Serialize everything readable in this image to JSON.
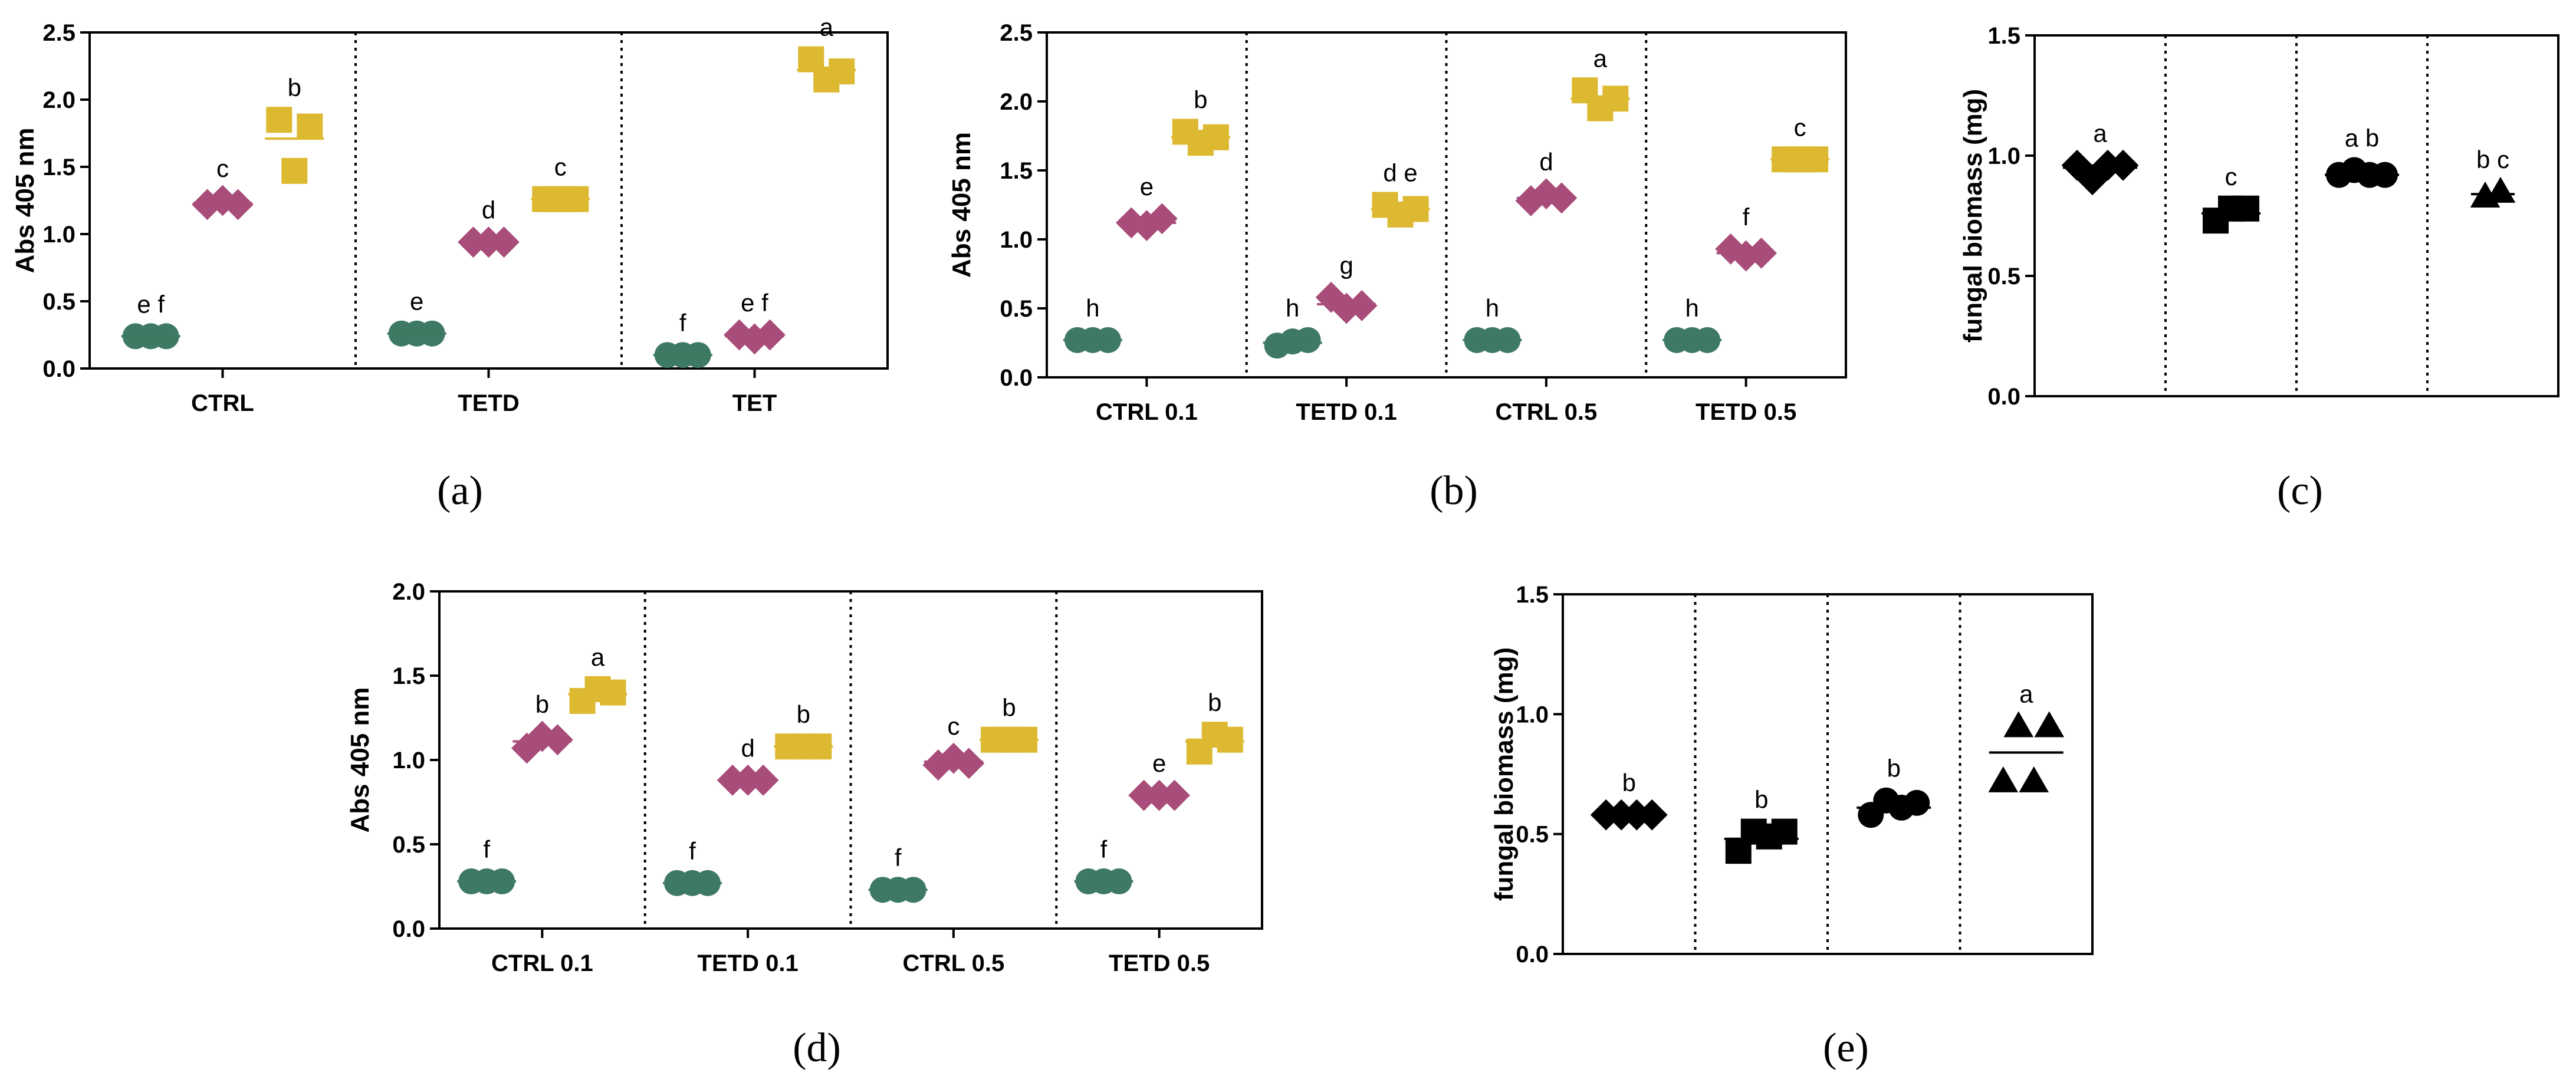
{
  "colors": {
    "green": "#3e7a63",
    "purple": "#a84d7a",
    "yellow": "#dcb930",
    "black": "#000000"
  },
  "chart_data": [
    {
      "id": "a",
      "caption": "(a)",
      "type": "scatter",
      "ylabel": "Abs 405 nm",
      "ylim": [
        0,
        2.5
      ],
      "yticks": [
        "0.0",
        "0.5",
        "1.0",
        "1.5",
        "2.0",
        "2.5"
      ],
      "categories": [
        "CTRL",
        "TETD",
        "TET"
      ],
      "groups": [
        {
          "category": "CTRL",
          "series": [
            {
              "color": "green",
              "marker": "circle",
              "values": [
                0.24,
                0.24,
                0.24
              ],
              "mean": 0.24,
              "letter": "e f"
            },
            {
              "color": "purple",
              "marker": "diamond",
              "values": [
                1.22,
                1.25,
                1.22
              ],
              "mean": 1.23,
              "letter": "c"
            },
            {
              "color": "yellow",
              "marker": "square",
              "values": [
                1.85,
                1.47,
                1.8
              ],
              "mean": 1.71,
              "letter": "b"
            }
          ]
        },
        {
          "category": "TETD",
          "series": [
            {
              "color": "green",
              "marker": "circle",
              "values": [
                0.26,
                0.26,
                0.26
              ],
              "mean": 0.26,
              "letter": "e"
            },
            {
              "color": "purple",
              "marker": "diamond",
              "values": [
                0.94,
                0.94,
                0.94
              ],
              "mean": 0.94,
              "letter": "d"
            },
            {
              "color": "yellow",
              "marker": "square",
              "values": [
                1.26,
                1.26,
                1.26
              ],
              "mean": 1.26,
              "letter": "c"
            }
          ]
        },
        {
          "category": "TET",
          "series": [
            {
              "color": "green",
              "marker": "circle",
              "values": [
                0.1,
                0.1,
                0.1
              ],
              "mean": 0.1,
              "letter": "f"
            },
            {
              "color": "purple",
              "marker": "diamond",
              "values": [
                0.25,
                0.22,
                0.25
              ],
              "mean": 0.24,
              "letter": "e f"
            },
            {
              "color": "yellow",
              "marker": "square",
              "values": [
                2.3,
                2.15,
                2.21
              ],
              "mean": 2.22,
              "letter": "a"
            }
          ]
        }
      ]
    },
    {
      "id": "b",
      "caption": "(b)",
      "type": "scatter",
      "ylabel": "Abs 405 nm",
      "ylim": [
        0,
        2.5
      ],
      "yticks": [
        "0.0",
        "0.5",
        "1.0",
        "1.5",
        "2.0",
        "2.5"
      ],
      "categories": [
        "CTRL 0.1",
        "TETD 0.1",
        "CTRL 0.5",
        "TETD 0.5"
      ],
      "groups": [
        {
          "category": "CTRL 0.1",
          "series": [
            {
              "color": "green",
              "marker": "circle",
              "values": [
                0.27,
                0.27,
                0.27
              ],
              "mean": 0.27,
              "letter": "h"
            },
            {
              "color": "purple",
              "marker": "diamond",
              "values": [
                1.12,
                1.1,
                1.15
              ],
              "mean": 1.12,
              "letter": "e"
            },
            {
              "color": "yellow",
              "marker": "square",
              "values": [
                1.78,
                1.7,
                1.74
              ],
              "mean": 1.74,
              "letter": "b"
            }
          ]
        },
        {
          "category": "TETD 0.1",
          "series": [
            {
              "color": "green",
              "marker": "circle",
              "values": [
                0.23,
                0.26,
                0.27
              ],
              "mean": 0.25,
              "letter": "h"
            },
            {
              "color": "purple",
              "marker": "diamond",
              "values": [
                0.58,
                0.5,
                0.52
              ],
              "mean": 0.53,
              "letter": "g"
            },
            {
              "color": "yellow",
              "marker": "square",
              "values": [
                1.25,
                1.18,
                1.22
              ],
              "mean": 1.22,
              "letter": "d e"
            }
          ]
        },
        {
          "category": "CTRL 0.5",
          "series": [
            {
              "color": "green",
              "marker": "circle",
              "values": [
                0.27,
                0.27,
                0.27
              ],
              "mean": 0.27,
              "letter": "h"
            },
            {
              "color": "purple",
              "marker": "diamond",
              "values": [
                1.28,
                1.33,
                1.3
              ],
              "mean": 1.3,
              "letter": "d"
            },
            {
              "color": "yellow",
              "marker": "square",
              "values": [
                2.08,
                1.95,
                2.02
              ],
              "mean": 2.02,
              "letter": "a"
            }
          ]
        },
        {
          "category": "TETD 0.5",
          "series": [
            {
              "color": "green",
              "marker": "circle",
              "values": [
                0.27,
                0.27,
                0.27
              ],
              "mean": 0.27,
              "letter": "h"
            },
            {
              "color": "purple",
              "marker": "diamond",
              "values": [
                0.93,
                0.88,
                0.9
              ],
              "mean": 0.9,
              "letter": "f"
            },
            {
              "color": "yellow",
              "marker": "square",
              "values": [
                1.58,
                1.58,
                1.58
              ],
              "mean": 1.58,
              "letter": "c"
            }
          ]
        }
      ]
    },
    {
      "id": "c",
      "caption": "(c)",
      "type": "scatter",
      "ylabel": "fungal biomass (mg)",
      "ylim": [
        0,
        1.5
      ],
      "yticks": [
        "0.0",
        "0.5",
        "1.0",
        "1.5"
      ],
      "categories": [
        "",
        "",
        "",
        ""
      ],
      "groups": [
        {
          "category": "",
          "series": [
            {
              "color": "black",
              "marker": "diamond",
              "values": [
                0.96,
                0.9,
                0.96,
                0.96
              ],
              "mean": 0.95,
              "letter": "a"
            }
          ]
        },
        {
          "category": "",
          "series": [
            {
              "color": "black",
              "marker": "square",
              "values": [
                0.73,
                0.78,
                0.78
              ],
              "mean": 0.76,
              "letter": "c"
            }
          ]
        },
        {
          "category": "",
          "series": [
            {
              "color": "black",
              "marker": "circle",
              "values": [
                0.92,
                0.94,
                0.92,
                0.92
              ],
              "mean": 0.92,
              "letter": "a b"
            }
          ]
        },
        {
          "category": "",
          "series": [
            {
              "color": "black",
              "marker": "triangle",
              "values": [
                0.83,
                0.85
              ],
              "mean": 0.84,
              "letter": "b c"
            }
          ]
        }
      ]
    },
    {
      "id": "d",
      "caption": "(d)",
      "type": "scatter",
      "ylabel": "Abs 405 nm",
      "ylim": [
        0,
        2.0
      ],
      "yticks": [
        "0.0",
        "0.5",
        "1.0",
        "1.5",
        "2.0"
      ],
      "categories": [
        "CTRL 0.1",
        "TETD 0.1",
        "CTRL 0.5",
        "TETD 0.5"
      ],
      "groups": [
        {
          "category": "CTRL 0.1",
          "series": [
            {
              "color": "green",
              "marker": "circle",
              "values": [
                0.28,
                0.28,
                0.28
              ],
              "mean": 0.28,
              "letter": "f"
            },
            {
              "color": "purple",
              "marker": "diamond",
              "values": [
                1.07,
                1.14,
                1.12
              ],
              "mean": 1.11,
              "letter": "b"
            },
            {
              "color": "yellow",
              "marker": "square",
              "values": [
                1.35,
                1.42,
                1.4
              ],
              "mean": 1.39,
              "letter": "a"
            }
          ]
        },
        {
          "category": "TETD 0.1",
          "series": [
            {
              "color": "green",
              "marker": "circle",
              "values": [
                0.27,
                0.27,
                0.27
              ],
              "mean": 0.27,
              "letter": "f"
            },
            {
              "color": "purple",
              "marker": "diamond",
              "values": [
                0.88,
                0.88,
                0.88
              ],
              "mean": 0.88,
              "letter": "d"
            },
            {
              "color": "yellow",
              "marker": "square",
              "values": [
                1.08,
                1.08,
                1.08
              ],
              "mean": 1.08,
              "letter": "b"
            }
          ]
        },
        {
          "category": "CTRL 0.5",
          "series": [
            {
              "color": "green",
              "marker": "circle",
              "values": [
                0.23,
                0.23,
                0.23
              ],
              "mean": 0.23,
              "letter": "f"
            },
            {
              "color": "purple",
              "marker": "diamond",
              "values": [
                0.97,
                1.01,
                0.98
              ],
              "mean": 0.99,
              "letter": "c"
            },
            {
              "color": "yellow",
              "marker": "square",
              "values": [
                1.12,
                1.12,
                1.12
              ],
              "mean": 1.12,
              "letter": "b"
            }
          ]
        },
        {
          "category": "TETD 0.5",
          "series": [
            {
              "color": "green",
              "marker": "circle",
              "values": [
                0.28,
                0.28,
                0.28
              ],
              "mean": 0.28,
              "letter": "f"
            },
            {
              "color": "purple",
              "marker": "diamond",
              "values": [
                0.79,
                0.79,
                0.79
              ],
              "mean": 0.79,
              "letter": "e"
            },
            {
              "color": "yellow",
              "marker": "square",
              "values": [
                1.05,
                1.15,
                1.12
              ],
              "mean": 1.11,
              "letter": "b"
            }
          ]
        }
      ]
    },
    {
      "id": "e",
      "caption": "(e)",
      "type": "scatter",
      "ylabel": "fungal biomass (mg)",
      "ylim": [
        0,
        1.5
      ],
      "yticks": [
        "0.0",
        "0.5",
        "1.0",
        "1.5"
      ],
      "categories": [
        "",
        "",
        "",
        ""
      ],
      "groups": [
        {
          "category": "",
          "series": [
            {
              "color": "black",
              "marker": "diamond",
              "values": [
                0.58,
                0.58,
                0.58,
                0.58
              ],
              "mean": 0.58,
              "letter": "b"
            }
          ]
        },
        {
          "category": "",
          "series": [
            {
              "color": "black",
              "marker": "square",
              "values": [
                0.43,
                0.51,
                0.49,
                0.51
              ],
              "mean": 0.48,
              "letter": "b"
            }
          ]
        },
        {
          "category": "",
          "series": [
            {
              "color": "black",
              "marker": "circle",
              "values": [
                0.58,
                0.64,
                0.61,
                0.63
              ],
              "mean": 0.61,
              "letter": "b"
            }
          ]
        },
        {
          "category": "",
          "series": [
            {
              "color": "black",
              "marker": "triangle",
              "values": [
                0.72,
                0.95,
                0.72,
                0.95
              ],
              "mean": 0.84,
              "letter": "a"
            }
          ]
        }
      ]
    }
  ]
}
